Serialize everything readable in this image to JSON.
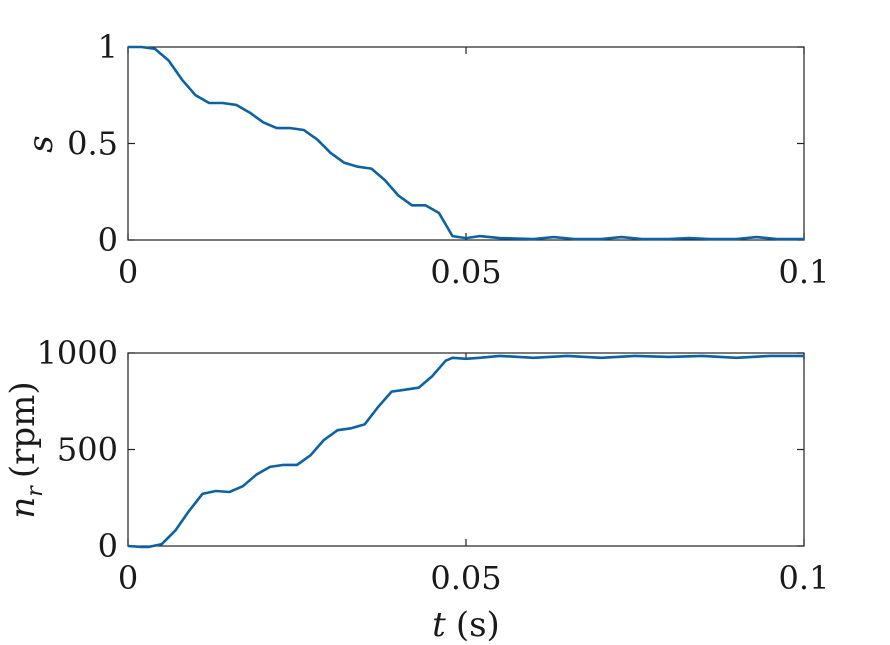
{
  "chart_data": [
    {
      "type": "line",
      "ylabel_var": "s",
      "ylabel_unit": "",
      "xlabel_var": "",
      "xlabel_unit": "",
      "xlim": [
        0,
        0.1
      ],
      "ylim": [
        0,
        1
      ],
      "xticks": [
        0,
        0.05,
        0.1
      ],
      "xtick_labels": [
        "0",
        "0.05",
        "0.1"
      ],
      "yticks": [
        0,
        0.5,
        1
      ],
      "ytick_labels": [
        "0",
        "0.5",
        "1"
      ],
      "grid": false,
      "line_color": "#0b62a4",
      "series": [
        {
          "x": [
            0,
            0.002,
            0.004,
            0.006,
            0.008,
            0.01,
            0.012,
            0.014,
            0.016,
            0.018,
            0.02,
            0.022,
            0.024,
            0.026,
            0.028,
            0.03,
            0.032,
            0.034,
            0.036,
            0.038,
            0.04,
            0.042,
            0.044,
            0.046,
            0.048,
            0.05,
            0.052,
            0.055,
            0.06,
            0.063,
            0.066,
            0.07,
            0.073,
            0.076,
            0.08,
            0.083,
            0.086,
            0.09,
            0.093,
            0.096,
            0.1
          ],
          "y": [
            1.0,
            1.0,
            0.99,
            0.93,
            0.83,
            0.75,
            0.71,
            0.71,
            0.7,
            0.66,
            0.61,
            0.58,
            0.58,
            0.57,
            0.52,
            0.45,
            0.4,
            0.38,
            0.37,
            0.31,
            0.23,
            0.18,
            0.18,
            0.14,
            0.02,
            0.01,
            0.02,
            0.01,
            0.005,
            0.015,
            0.005,
            0.005,
            0.015,
            0.005,
            0.005,
            0.01,
            0.005,
            0.005,
            0.015,
            0.005,
            0.005
          ]
        }
      ]
    },
    {
      "type": "line",
      "ylabel_var": "n",
      "ylabel_sub": "r",
      "ylabel_unit": "(rpm)",
      "xlabel_var": "t",
      "xlabel_unit": "(s)",
      "xlim": [
        0,
        0.1
      ],
      "ylim": [
        0,
        1000
      ],
      "xticks": [
        0,
        0.05,
        0.1
      ],
      "xtick_labels": [
        "0",
        "0.05",
        "0.1"
      ],
      "yticks": [
        0,
        500,
        1000
      ],
      "ytick_labels": [
        "0",
        "500",
        "1000"
      ],
      "grid": false,
      "line_color": "#0b62a4",
      "series": [
        {
          "x": [
            0,
            0.002,
            0.003,
            0.005,
            0.007,
            0.009,
            0.011,
            0.013,
            0.015,
            0.017,
            0.019,
            0.021,
            0.023,
            0.025,
            0.027,
            0.029,
            0.031,
            0.033,
            0.035,
            0.037,
            0.039,
            0.041,
            0.043,
            0.045,
            0.047,
            0.048,
            0.05,
            0.052,
            0.055,
            0.06,
            0.065,
            0.07,
            0.075,
            0.08,
            0.085,
            0.09,
            0.095,
            0.1
          ],
          "y": [
            0,
            -5,
            -5,
            10,
            80,
            180,
            270,
            285,
            280,
            310,
            370,
            410,
            420,
            420,
            470,
            550,
            600,
            610,
            630,
            720,
            800,
            810,
            820,
            880,
            960,
            975,
            970,
            975,
            985,
            975,
            985,
            975,
            985,
            980,
            985,
            975,
            985,
            985
          ]
        }
      ]
    }
  ]
}
